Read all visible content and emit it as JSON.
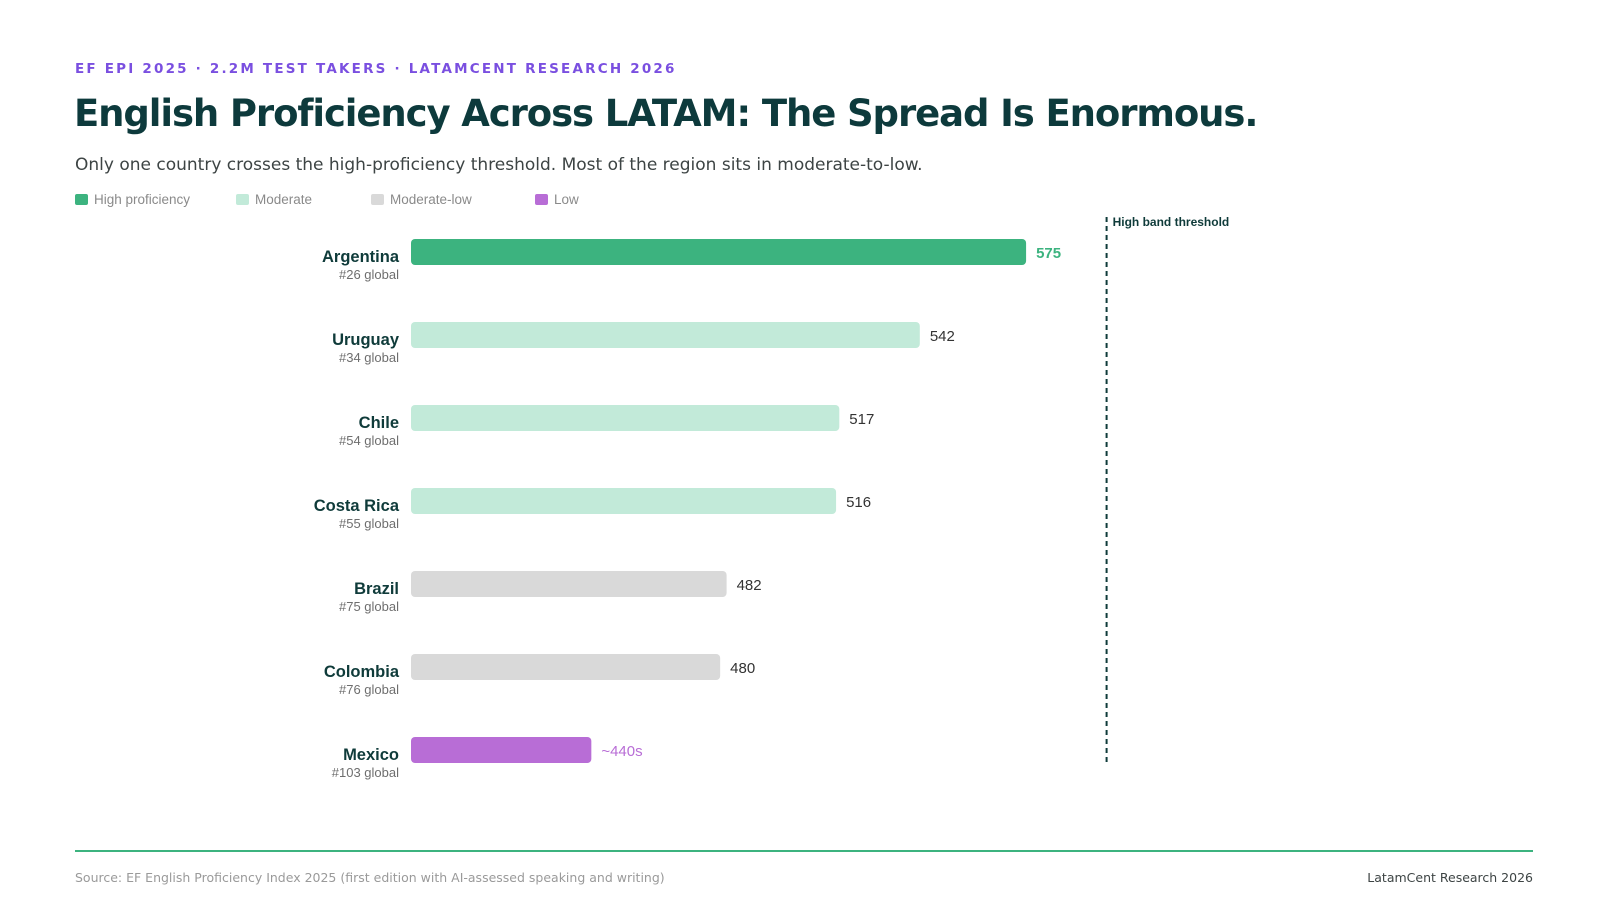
{
  "header": {
    "eyebrow": "EF EPI 2025 · 2.2M TEST TAKERS · LATAMCENT RESEARCH 2026",
    "title": "English Proficiency Across LATAM: The Spread Is Enormous.",
    "subtitle": "Only one country crosses the high-proficiency threshold. Most of the region sits in moderate-to-low."
  },
  "legend": [
    {
      "label": "High proficiency",
      "color": "#3cb37f"
    },
    {
      "label": "Moderate",
      "color": "#c2ead9"
    },
    {
      "label": "Moderate-low",
      "color": "#d9d9d9"
    },
    {
      "label": "Low",
      "color": "#b86dd6"
    }
  ],
  "chart_data": {
    "type": "bar",
    "orientation": "horizontal",
    "categories": [
      "Argentina",
      "Uruguay",
      "Chile",
      "Costa Rica",
      "Brazil",
      "Colombia",
      "Mexico"
    ],
    "ranks": [
      "#26 global",
      "#34 global",
      "#54 global",
      "#55 global",
      "#75 global",
      "#76 global",
      "#103 global"
    ],
    "values": [
      575,
      542,
      517,
      516,
      482,
      480,
      440
    ],
    "value_labels": [
      "575",
      "542",
      "517",
      "516",
      "482",
      "480",
      "~440s"
    ],
    "bands": [
      "High proficiency",
      "Moderate",
      "Moderate",
      "Moderate",
      "Moderate-low",
      "Moderate-low",
      "Low"
    ],
    "colors": [
      "#3cb37f",
      "#c2ead9",
      "#c2ead9",
      "#c2ead9",
      "#d9d9d9",
      "#d9d9d9",
      "#b86dd6"
    ],
    "label_colors": [
      "#3cb37f",
      "#333333",
      "#333333",
      "#333333",
      "#333333",
      "#333333",
      "#b86dd6"
    ],
    "threshold": {
      "value": 600,
      "label": "High band threshold"
    },
    "xlim": [
      384,
      620
    ],
    "grid": false,
    "legend_position": "top-left"
  },
  "footer": {
    "source": "Source: EF English Proficiency Index 2025 (first edition with AI-assessed speaking and writing)",
    "brand": "LatamCent Research 2026"
  }
}
